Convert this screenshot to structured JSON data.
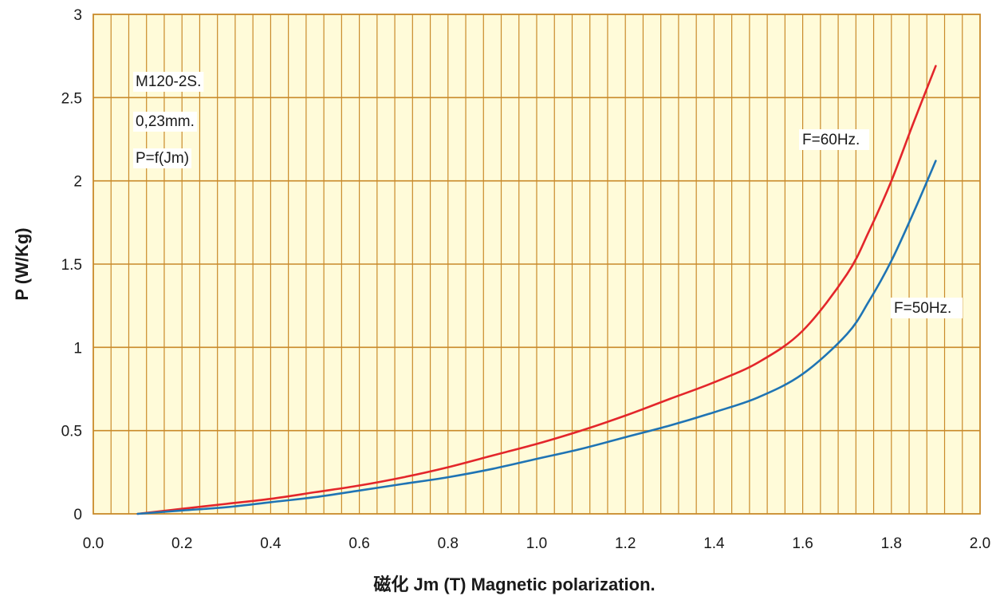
{
  "chart_data": {
    "type": "line",
    "title": "",
    "xlabel": "磁化 Jm (T) Magnetic polarization.",
    "ylabel": "P (W/Kg)",
    "xlim": [
      0.0,
      2.0
    ],
    "ylim": [
      0,
      3
    ],
    "x_ticks": [
      "0.0",
      "0.2",
      "0.4",
      "0.6",
      "0.8",
      "1.0",
      "1.2",
      "1.4",
      "1.6",
      "1.8",
      "2.0"
    ],
    "y_ticks": [
      "0",
      "0.5",
      "1",
      "1.5",
      "2",
      "2.5",
      "3"
    ],
    "grid": true,
    "annotations": [
      "M120-2S.",
      "0,23mm.",
      "P=f(Jm)"
    ],
    "series": [
      {
        "name": "F=60Hz.",
        "color": "#e3262b",
        "x": [
          0.1,
          0.2,
          0.3,
          0.4,
          0.5,
          0.6,
          0.7,
          0.8,
          0.9,
          1.0,
          1.1,
          1.2,
          1.3,
          1.4,
          1.5,
          1.6,
          1.7,
          1.75,
          1.8,
          1.85,
          1.9
        ],
        "y": [
          0.0,
          0.03,
          0.06,
          0.09,
          0.13,
          0.17,
          0.22,
          0.28,
          0.35,
          0.42,
          0.5,
          0.59,
          0.69,
          0.79,
          0.91,
          1.1,
          1.44,
          1.7,
          2.0,
          2.35,
          2.69
        ]
      },
      {
        "name": "F=50Hz.",
        "color": "#1f74b4",
        "x": [
          0.1,
          0.2,
          0.3,
          0.4,
          0.5,
          0.6,
          0.7,
          0.8,
          0.9,
          1.0,
          1.1,
          1.2,
          1.3,
          1.4,
          1.5,
          1.6,
          1.7,
          1.75,
          1.8,
          1.85,
          1.9
        ],
        "y": [
          0.0,
          0.02,
          0.04,
          0.07,
          0.1,
          0.14,
          0.18,
          0.22,
          0.27,
          0.33,
          0.39,
          0.46,
          0.53,
          0.61,
          0.7,
          0.84,
          1.08,
          1.28,
          1.52,
          1.81,
          2.12
        ]
      }
    ]
  },
  "style": {
    "plot_background": "#fffbd9",
    "grid_color": "#c98a2a",
    "text_color": "#1a1a1a"
  }
}
